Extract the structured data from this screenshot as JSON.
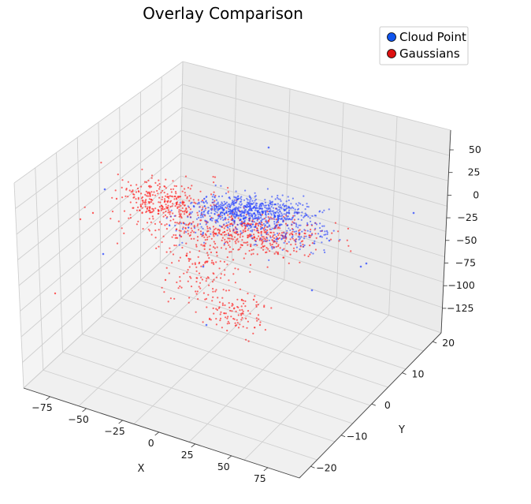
{
  "chart_data": {
    "type": "scatter",
    "title": "Overlay Comparison",
    "xlabel": "X",
    "ylabel": "Y",
    "zlabel": "",
    "projection": "3d",
    "grid": true,
    "legend_position": "top-right",
    "x_ticks": [
      "−75",
      "−50",
      "−25",
      "0",
      "25",
      "50",
      "75"
    ],
    "y_ticks": [
      "−20",
      "−10",
      "0",
      "10",
      "20"
    ],
    "z_ticks": [
      "50",
      "25",
      "0",
      "−25",
      "−50",
      "−75",
      "−100",
      "−125"
    ],
    "series": [
      {
        "name": "Cloud Point",
        "color": "#1f3cff",
        "marker": "point",
        "approx_points": 900
      },
      {
        "name": "Gaussians",
        "color": "#ff1a1a",
        "marker": "point",
        "approx_points": 1100
      }
    ],
    "legend_marker_colors": [
      "#1155ee",
      "#dd1111"
    ]
  }
}
